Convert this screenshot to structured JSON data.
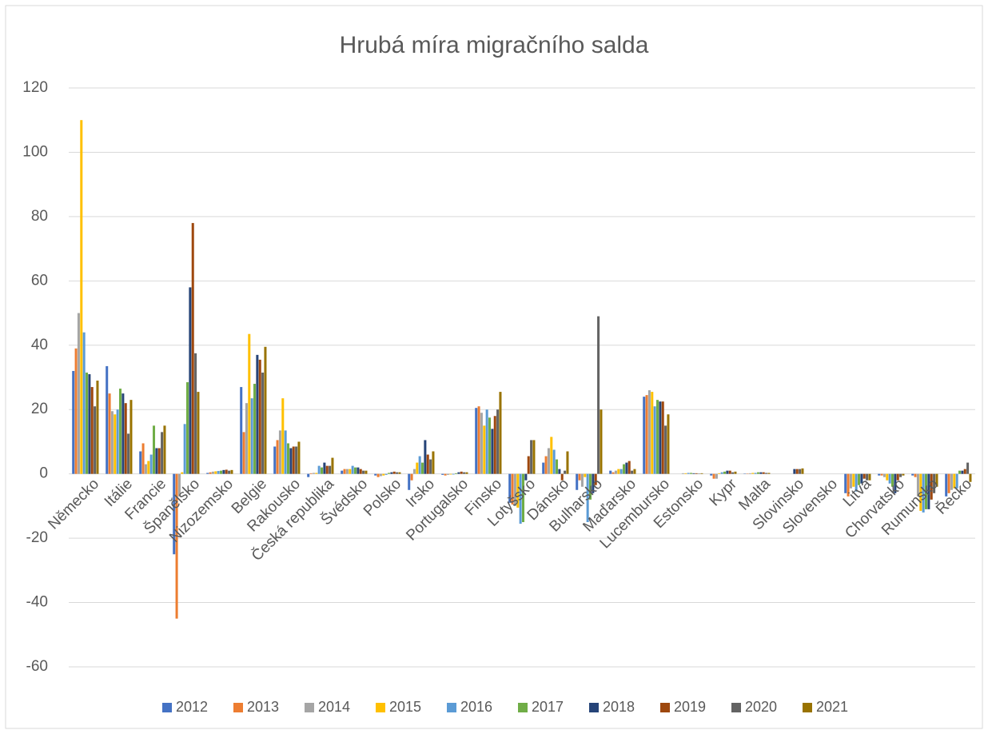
{
  "chart_data": {
    "type": "bar",
    "title": "Hrubá míra migračního salda",
    "categories": [
      "Německo",
      "Itálie",
      "Francie",
      "Španělsko",
      "Nizozemsko",
      "Belgie",
      "Rakousko",
      "Česká republika",
      "Švédsko",
      "Polsko",
      "Irsko",
      "Portugalsko",
      "Finsko",
      "Lotyšsko",
      "Dánsko",
      "Bulharsko",
      "Maďarsko",
      "Lucembursko",
      "Estonsko",
      "Kypr",
      "Malta",
      "Slovinsko",
      "Slovensko",
      "Litva",
      "Chorvatsko",
      "Rumunsko",
      "Řecko"
    ],
    "series": [
      {
        "name": "2012",
        "color": "#4472c4",
        "values": [
          32,
          33.5,
          7,
          -25,
          0.3,
          27,
          8.5,
          -1,
          1,
          -0.5,
          -5,
          -0.3,
          20.5,
          -9,
          3.5,
          -5,
          1,
          24,
          0,
          -0.5,
          0.1,
          0,
          0,
          -6,
          -0.5,
          -0.5,
          -7
        ]
      },
      {
        "name": "2013",
        "color": "#ed7d31",
        "values": [
          39,
          25,
          9.5,
          -45,
          0.5,
          13,
          10.5,
          0.2,
          1.5,
          -1,
          -2,
          -0.5,
          21,
          -9.5,
          5.5,
          -2,
          0.5,
          24.5,
          0,
          -1.5,
          0.1,
          0,
          0,
          -7,
          -0.5,
          -1,
          -6
        ]
      },
      {
        "name": "2014",
        "color": "#a5a5a5",
        "values": [
          50,
          19.5,
          3,
          -7,
          0.7,
          22,
          13.5,
          0.3,
          1.5,
          -0.7,
          1.5,
          -0.3,
          19,
          -10,
          8,
          -4,
          1,
          26,
          0.2,
          -1.5,
          0.2,
          0,
          0,
          -4.5,
          -1,
          -7,
          -5
        ]
      },
      {
        "name": "2015",
        "color": "#ffc000",
        "values": [
          110,
          18.5,
          4,
          0.5,
          0.8,
          43.5,
          23.5,
          0.3,
          1.5,
          -0.5,
          3.5,
          -0.2,
          15,
          -10.5,
          11.5,
          -1,
          1.5,
          25.5,
          0.2,
          0.2,
          0.3,
          0,
          0,
          -4,
          -2,
          -11.5,
          -4.5
        ]
      },
      {
        "name": "2016",
        "color": "#5b9bd5",
        "values": [
          44,
          20,
          6,
          15.5,
          0.9,
          23.5,
          13.5,
          2.5,
          2.5,
          -0.3,
          5.5,
          -0.2,
          20,
          -15.5,
          7.5,
          -15,
          1.5,
          21,
          0.3,
          0.5,
          0.3,
          0,
          0,
          -5.5,
          -3,
          -12,
          -4.5
        ]
      },
      {
        "name": "2017",
        "color": "#70ad47",
        "values": [
          31.5,
          26.5,
          15,
          28.5,
          1,
          28,
          9.5,
          2,
          2,
          0.3,
          3.5,
          0.2,
          17.5,
          -15,
          4.5,
          -8,
          3,
          23,
          0.3,
          0.7,
          0.5,
          0,
          0,
          -3.5,
          -4,
          -11,
          1
        ]
      },
      {
        "name": "2018",
        "color": "#264478",
        "values": [
          31,
          25,
          8,
          58,
          1.2,
          37,
          8,
          3.5,
          2,
          0.5,
          10.5,
          0.5,
          14,
          -2,
          1.5,
          -6,
          3.5,
          22.5,
          0.2,
          1,
          0.5,
          1.5,
          0,
          -3,
          -6,
          -11,
          1
        ]
      },
      {
        "name": "2019",
        "color": "#9e480e",
        "values": [
          27,
          22,
          8,
          78,
          1.3,
          35.5,
          8.5,
          2.5,
          1.5,
          0.7,
          6,
          0.7,
          18,
          5.5,
          -2,
          -3.5,
          4,
          22.5,
          0.2,
          1,
          0.5,
          1.5,
          0,
          -1.5,
          -2,
          -8,
          1.5
        ]
      },
      {
        "name": "2020",
        "color": "#636363",
        "values": [
          21,
          12.5,
          13,
          37.5,
          1,
          31.5,
          8.5,
          2.5,
          1,
          0.5,
          4.5,
          0.5,
          20,
          10.5,
          1,
          49,
          1,
          15,
          0.1,
          0.5,
          0.3,
          1.5,
          0,
          -2,
          -1,
          -6,
          3.5
        ]
      },
      {
        "name": "2021",
        "color": "#997300",
        "values": [
          29,
          23,
          15,
          25.5,
          1.2,
          39.5,
          10,
          5,
          1,
          0.5,
          7,
          0.5,
          25.5,
          10.5,
          7,
          20,
          1.5,
          18.5,
          0.2,
          0.7,
          0.3,
          1.7,
          0,
          -2,
          -0.5,
          -4,
          -2.5
        ]
      }
    ],
    "ylim": [
      -60,
      120
    ],
    "yticks": [
      -60,
      -40,
      -20,
      0,
      20,
      40,
      60,
      80,
      100,
      120
    ],
    "grid": true,
    "legend": "bottom"
  }
}
